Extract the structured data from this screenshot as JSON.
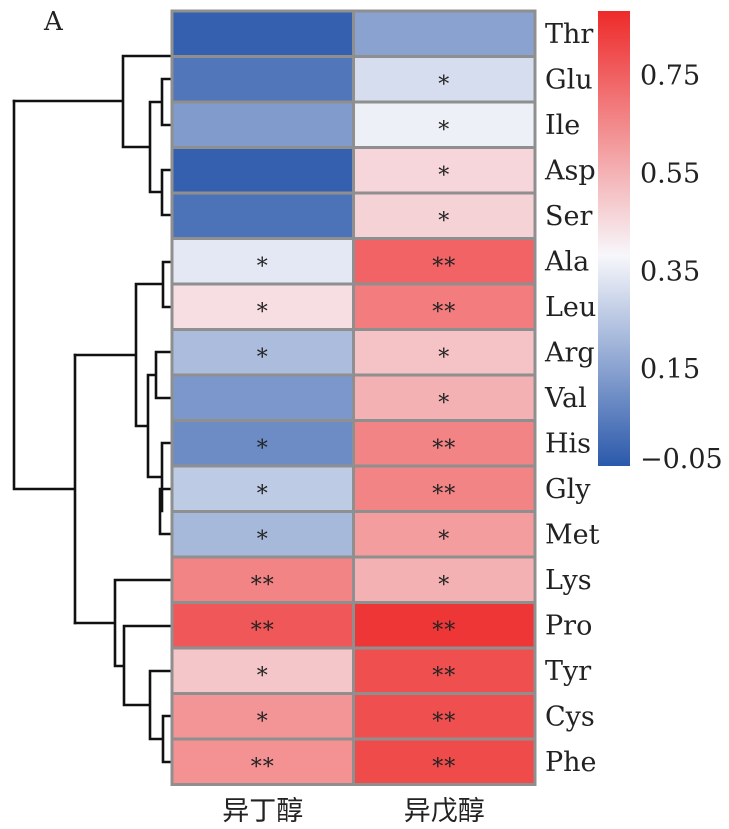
{
  "panel_label": "A",
  "chart_data": {
    "type": "heatmap",
    "rows": [
      "Thr",
      "Glu",
      "Ile",
      "Asp",
      "Ser",
      "Ala",
      "Leu",
      "Arg",
      "Val",
      "His",
      "Gly",
      "Met",
      "Lys",
      "Pro",
      "Tyr",
      "Cys",
      "Phe"
    ],
    "columns": [
      "异丁醇",
      "异戊醇"
    ],
    "values": [
      [
        -0.03,
        0.15
      ],
      [
        0.03,
        0.31
      ],
      [
        0.13,
        0.36
      ],
      [
        -0.03,
        0.46
      ],
      [
        0.02,
        0.47
      ],
      [
        0.34,
        0.74
      ],
      [
        0.44,
        0.68
      ],
      [
        0.22,
        0.51
      ],
      [
        0.12,
        0.55
      ],
      [
        0.09,
        0.66
      ],
      [
        0.26,
        0.66
      ],
      [
        0.21,
        0.6
      ],
      [
        0.66,
        0.55
      ],
      [
        0.77,
        0.85
      ],
      [
        0.5,
        0.79
      ],
      [
        0.62,
        0.79
      ],
      [
        0.63,
        0.8
      ]
    ],
    "significance": [
      [
        "",
        ""
      ],
      [
        "",
        "*"
      ],
      [
        "",
        "*"
      ],
      [
        "",
        "*"
      ],
      [
        "",
        "*"
      ],
      [
        "*",
        "**"
      ],
      [
        "*",
        "**"
      ],
      [
        "*",
        "*"
      ],
      [
        "",
        "*"
      ],
      [
        "*",
        "**"
      ],
      [
        "*",
        "**"
      ],
      [
        "*",
        "*"
      ],
      [
        "**",
        "*"
      ],
      [
        "**",
        "**"
      ],
      [
        "*",
        "**"
      ],
      [
        "*",
        "**"
      ],
      [
        "**",
        "**"
      ]
    ],
    "colorscale": {
      "min": -0.05,
      "mid": 0.38,
      "max": 0.88,
      "low_color": "#2b59ab",
      "mid_color": "#f7f7fb",
      "high_color": "#ee2a2a",
      "ticks": [
        0.75,
        0.55,
        0.35,
        0.15,
        -0.05
      ],
      "tick_labels": [
        "0.75",
        "0.55",
        "0.35",
        "0.15",
        "−0.05"
      ]
    },
    "legend": "right",
    "dendrogram": "left"
  }
}
